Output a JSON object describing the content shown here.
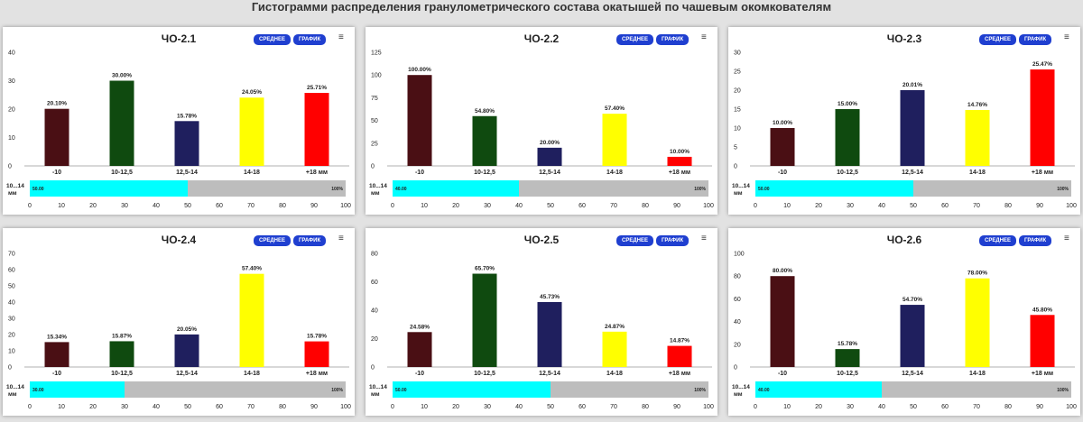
{
  "page_title": "Гистограмми распределения гранулометрического состава окатышей по чашевым окомкователям",
  "buttons": {
    "average": "СРЕДНЕЕ",
    "chart": "ГРАФИК"
  },
  "menu_icon": "hamburger-menu-icon",
  "colors": [
    "#4a0f14",
    "#0f4a0f",
    "#1f1f5e",
    "#ffff00",
    "#ff0000"
  ],
  "progress_color": "#00ffff",
  "progress_track_color": "#bdbdbd",
  "chart_data": [
    {
      "type": "bar",
      "title": "ЧО-2.1",
      "categories": [
        "-10",
        "10-12,5",
        "12,5-14",
        "14-18",
        "+18 мм"
      ],
      "values": [
        20.1,
        30.0,
        15.78,
        24.05,
        25.71
      ],
      "value_labels": [
        "20.10%",
        "30.00%",
        "15.78%",
        "24.05%",
        "25.71%"
      ],
      "yticks": [
        0,
        10,
        20,
        30,
        40
      ],
      "ylim": [
        0,
        40
      ],
      "bullet": {
        "label": "10...14 мм",
        "value": 50,
        "value_label": "50.00",
        "max_label": "100%",
        "ticks": [
          0,
          10,
          20,
          30,
          40,
          50,
          60,
          70,
          80,
          90,
          100
        ]
      }
    },
    {
      "type": "bar",
      "title": "ЧО-2.2",
      "categories": [
        "-10",
        "10-12,5",
        "12,5-14",
        "14-18",
        "+18 мм"
      ],
      "values": [
        100.0,
        54.8,
        20.0,
        57.4,
        10.0
      ],
      "value_labels": [
        "100.00%",
        "54.80%",
        "20.00%",
        "57.40%",
        "10.00%"
      ],
      "yticks": [
        0,
        25,
        50,
        75,
        100,
        125
      ],
      "ylim": [
        0,
        125
      ],
      "bullet": {
        "label": "10...14 мм",
        "value": 40,
        "value_label": "40.00",
        "max_label": "100%",
        "ticks": [
          0,
          10,
          20,
          30,
          40,
          50,
          60,
          70,
          80,
          90,
          100
        ]
      }
    },
    {
      "type": "bar",
      "title": "ЧО-2.3",
      "categories": [
        "-10",
        "10-12,5",
        "12,5-14",
        "14-18",
        "+18 мм"
      ],
      "values": [
        10.0,
        15.0,
        20.01,
        14.76,
        25.47
      ],
      "value_labels": [
        "10.00%",
        "15.00%",
        "20.01%",
        "14.76%",
        "25.47%"
      ],
      "yticks": [
        0,
        5,
        10,
        15,
        20,
        25,
        30
      ],
      "ylim": [
        0,
        30
      ],
      "bullet": {
        "label": "10...14 мм",
        "value": 50,
        "value_label": "50.00",
        "max_label": "100%",
        "ticks": [
          0,
          10,
          20,
          30,
          40,
          50,
          60,
          70,
          80,
          90,
          100
        ]
      }
    },
    {
      "type": "bar",
      "title": "ЧО-2.4",
      "categories": [
        "-10",
        "10-12,5",
        "12,5-14",
        "14-18",
        "+18 мм"
      ],
      "values": [
        15.34,
        15.87,
        20.05,
        57.4,
        15.78
      ],
      "value_labels": [
        "15.34%",
        "15.87%",
        "20.05%",
        "57.40%",
        "15.78%"
      ],
      "yticks": [
        0,
        10,
        20,
        30,
        40,
        50,
        60,
        70
      ],
      "ylim": [
        0,
        70
      ],
      "bullet": {
        "label": "10...14 мм",
        "value": 30,
        "value_label": "30.00",
        "max_label": "100%",
        "ticks": [
          0,
          10,
          20,
          30,
          40,
          50,
          60,
          70,
          80,
          90,
          100
        ]
      }
    },
    {
      "type": "bar",
      "title": "ЧО-2.5",
      "categories": [
        "-10",
        "10-12,5",
        "12,5-14",
        "14-18",
        "+18 мм"
      ],
      "values": [
        24.58,
        65.7,
        45.73,
        24.87,
        14.87
      ],
      "value_labels": [
        "24.58%",
        "65.70%",
        "45.73%",
        "24.87%",
        "14.87%"
      ],
      "yticks": [
        0,
        20,
        40,
        60,
        80
      ],
      "ylim": [
        0,
        80
      ],
      "bullet": {
        "label": "10...14 мм",
        "value": 50,
        "value_label": "50.00",
        "max_label": "100%",
        "ticks": [
          0,
          10,
          20,
          30,
          40,
          50,
          60,
          70,
          80,
          90,
          100
        ]
      }
    },
    {
      "type": "bar",
      "title": "ЧО-2.6",
      "categories": [
        "-10",
        "10-12,5",
        "12,5-14",
        "14-18",
        "+18 мм"
      ],
      "values": [
        80.0,
        15.78,
        54.7,
        78.0,
        45.8
      ],
      "value_labels": [
        "80.00%",
        "15.78%",
        "54.70%",
        "78.00%",
        "45.80%"
      ],
      "yticks": [
        0,
        20,
        40,
        60,
        80,
        100
      ],
      "ylim": [
        0,
        100
      ],
      "bullet": {
        "label": "10...14 мм",
        "value": 40,
        "value_label": "40.00",
        "max_label": "100%",
        "ticks": [
          0,
          10,
          20,
          30,
          40,
          50,
          60,
          70,
          80,
          90,
          100
        ]
      }
    }
  ]
}
